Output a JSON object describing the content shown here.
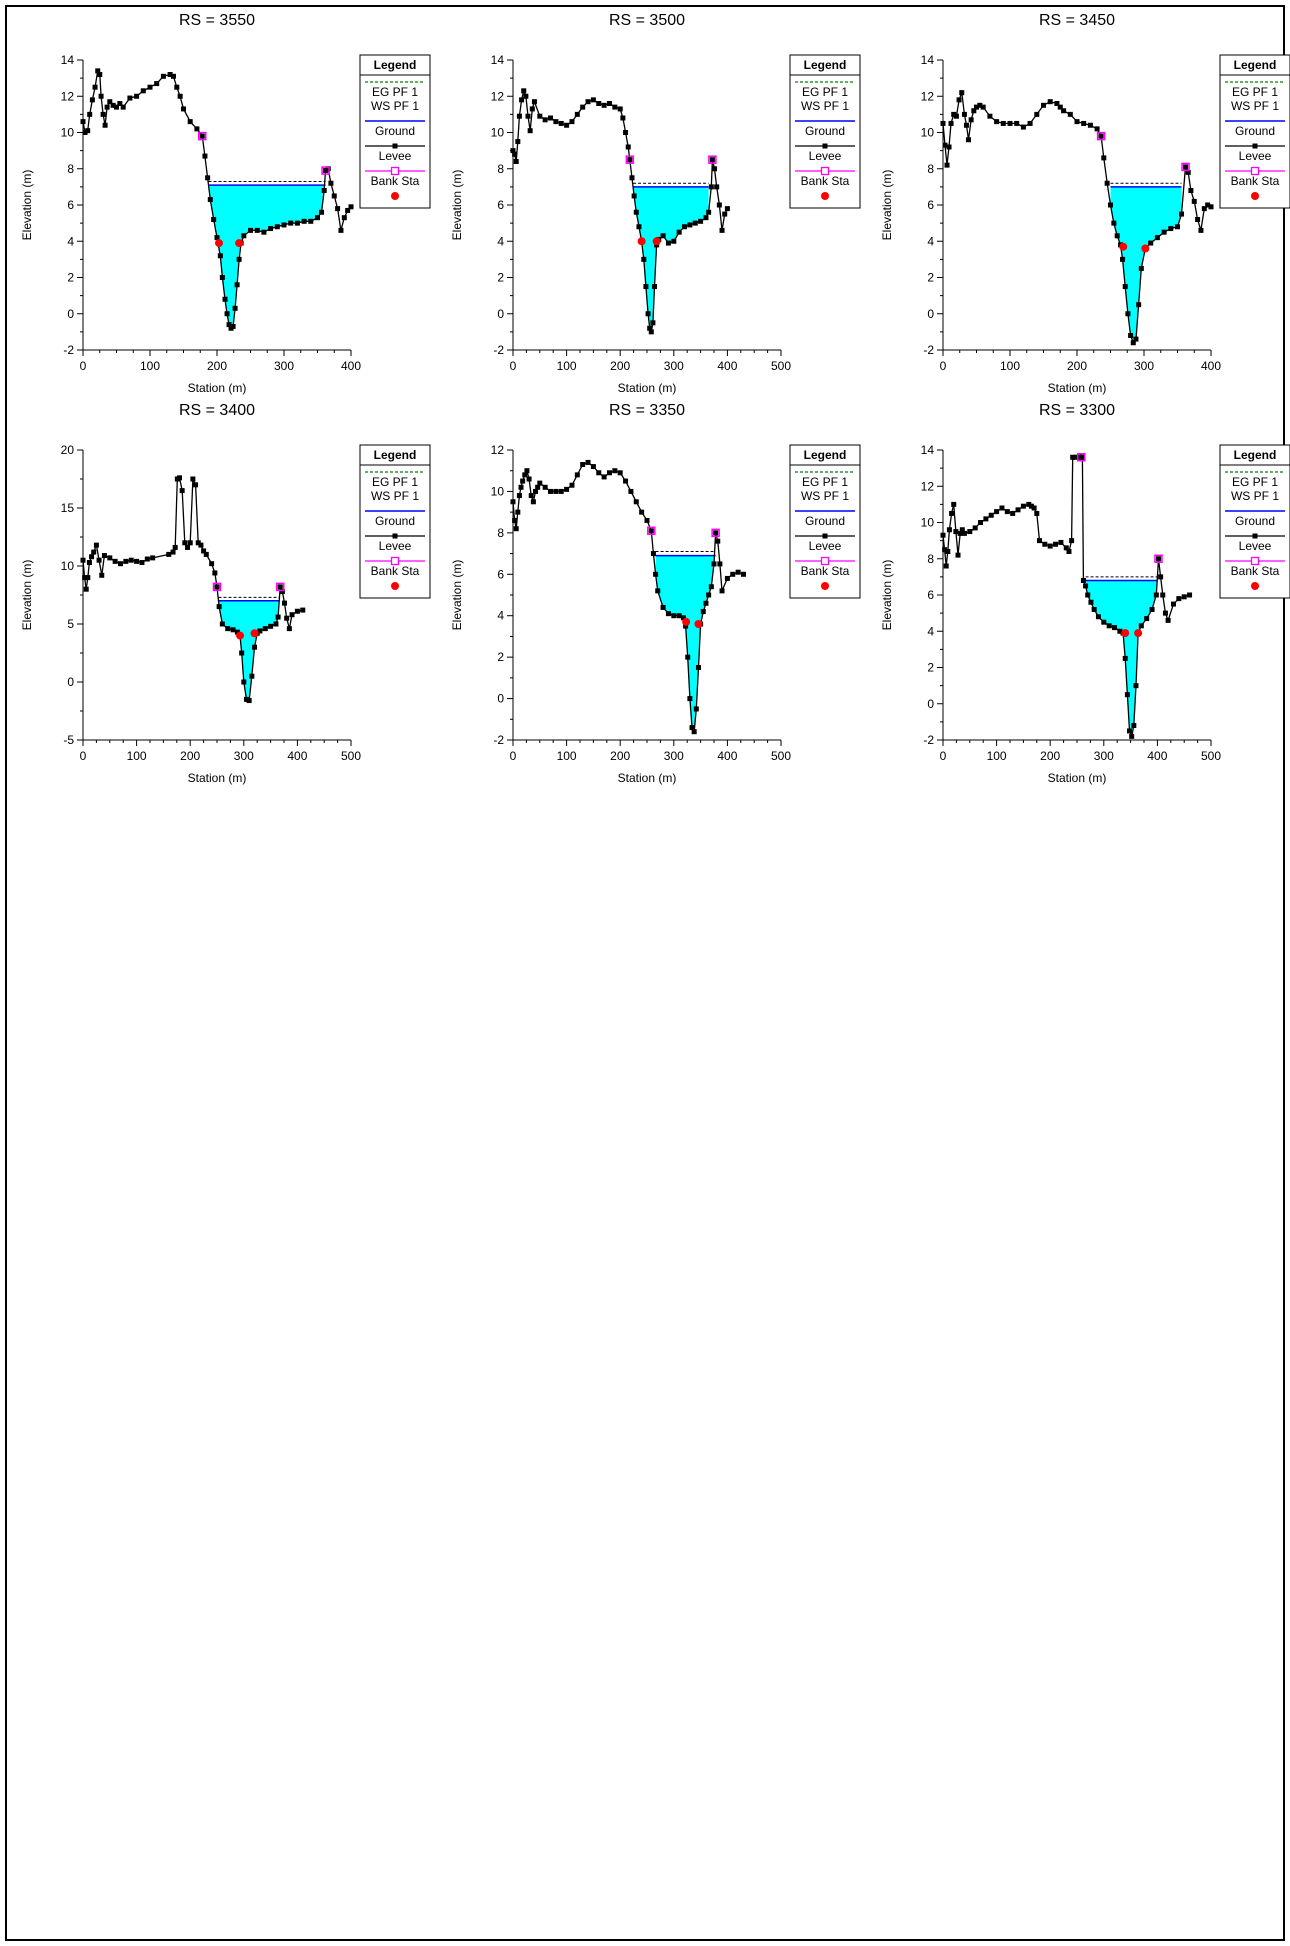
{
  "colors": {
    "water_fill": "#00ffff",
    "ws_line": "#0000ff",
    "eg_line": "#008000",
    "ground": "#000000",
    "levee": "#ff00ff",
    "bank_sta": "#ff0000",
    "panel_bg": "#ffffff"
  },
  "legend": {
    "title": "Legend",
    "items": [
      {
        "label": "EG PF 1",
        "style": "dashed-line",
        "color": "#008000"
      },
      {
        "label": "WS PF 1",
        "style": "line",
        "color": "#0000ff"
      },
      {
        "label": "Ground",
        "style": "line-square-marker",
        "color": "#000000"
      },
      {
        "label": "Levee",
        "style": "line-open-square-marker",
        "color": "#ff00ff"
      },
      {
        "label": "Bank Sta",
        "style": "dot-marker",
        "color": "#ff0000"
      }
    ]
  },
  "chart_data": [
    {
      "type": "line",
      "title": "RS = 3550",
      "xlabel": "Station (m)",
      "ylabel": "Elevation (m)",
      "xlim": [
        0,
        400
      ],
      "ylim": [
        -2,
        14
      ],
      "xticks": [
        0,
        100,
        200,
        300,
        400
      ],
      "yticks": [
        -2,
        0,
        2,
        4,
        6,
        8,
        10,
        12,
        14
      ],
      "grid": false,
      "legend_position": "top-right",
      "ws_elevation": 7.1,
      "eg_elevation": 7.3,
      "levees": [
        {
          "x": 178,
          "y": 9.8
        },
        {
          "x": 362,
          "y": 7.9
        }
      ],
      "bank_stations": [
        {
          "x": 203,
          "y": 3.9
        },
        {
          "x": 233,
          "y": 3.9
        }
      ],
      "ground": {
        "x": [
          0,
          3,
          7,
          10,
          14,
          18,
          22,
          25,
          27,
          30,
          33,
          36,
          40,
          45,
          50,
          55,
          60,
          70,
          80,
          90,
          100,
          110,
          120,
          130,
          135,
          140,
          145,
          150,
          160,
          170,
          178,
          182,
          186,
          190,
          195,
          200,
          205,
          208,
          212,
          215,
          218,
          221,
          224,
          227,
          230,
          233,
          236,
          240,
          250,
          260,
          270,
          280,
          290,
          300,
          310,
          320,
          330,
          340,
          350,
          356,
          360,
          362,
          366,
          370,
          375,
          380,
          385,
          390,
          395,
          400
        ],
        "y": [
          10.6,
          10.0,
          10.1,
          11.0,
          11.8,
          12.5,
          13.4,
          13.2,
          12.0,
          11.0,
          10.4,
          11.4,
          11.7,
          11.5,
          11.4,
          11.6,
          11.4,
          11.9,
          12.0,
          12.3,
          12.5,
          12.7,
          13.1,
          13.2,
          13.1,
          12.5,
          12.0,
          11.3,
          10.6,
          10.2,
          9.8,
          8.7,
          7.5,
          6.3,
          5.2,
          4.2,
          3.2,
          2.0,
          0.8,
          0.0,
          -0.6,
          -0.8,
          -0.7,
          0.3,
          1.6,
          3.0,
          3.9,
          4.3,
          4.6,
          4.6,
          4.5,
          4.7,
          4.8,
          4.9,
          5.0,
          5.0,
          5.1,
          5.1,
          5.3,
          5.6,
          6.8,
          7.9,
          8.0,
          7.2,
          6.5,
          5.8,
          4.6,
          5.3,
          5.7,
          5.9
        ]
      }
    },
    {
      "type": "line",
      "title": "RS = 3500",
      "xlabel": "Station (m)",
      "ylabel": "Elevation (m)",
      "xlim": [
        0,
        500
      ],
      "ylim": [
        -2,
        14
      ],
      "xticks": [
        0,
        100,
        200,
        300,
        400,
        500
      ],
      "yticks": [
        -2,
        0,
        2,
        4,
        6,
        8,
        10,
        12,
        14
      ],
      "grid": false,
      "legend_position": "top-right",
      "ws_elevation": 7.0,
      "eg_elevation": 7.2,
      "levees": [
        {
          "x": 218,
          "y": 8.5
        },
        {
          "x": 372,
          "y": 8.5
        }
      ],
      "bank_stations": [
        {
          "x": 240,
          "y": 4.0
        },
        {
          "x": 268,
          "y": 4.0
        }
      ],
      "ground": {
        "x": [
          0,
          3,
          6,
          9,
          12,
          16,
          20,
          24,
          28,
          32,
          36,
          40,
          50,
          60,
          70,
          80,
          90,
          100,
          110,
          120,
          130,
          140,
          150,
          160,
          170,
          180,
          190,
          200,
          205,
          210,
          215,
          218,
          222,
          226,
          230,
          235,
          240,
          244,
          248,
          252,
          255,
          258,
          261,
          264,
          268,
          272,
          280,
          290,
          300,
          310,
          320,
          330,
          340,
          350,
          360,
          365,
          370,
          372,
          376,
          380,
          385,
          390,
          395,
          400
        ],
        "y": [
          9.0,
          8.8,
          8.4,
          9.5,
          10.9,
          11.8,
          12.3,
          12.0,
          10.9,
          10.1,
          11.3,
          11.7,
          10.9,
          10.7,
          10.8,
          10.6,
          10.5,
          10.4,
          10.6,
          11.0,
          11.4,
          11.7,
          11.8,
          11.6,
          11.5,
          11.6,
          11.4,
          11.3,
          10.8,
          10.0,
          9.2,
          8.5,
          7.5,
          6.5,
          5.6,
          4.8,
          4.0,
          3.0,
          1.5,
          0.0,
          -0.8,
          -1.0,
          -0.5,
          1.5,
          3.8,
          4.1,
          4.3,
          3.9,
          4.0,
          4.5,
          4.8,
          4.9,
          5.0,
          5.1,
          5.3,
          5.6,
          7.0,
          8.5,
          8.0,
          7.0,
          6.0,
          4.6,
          5.5,
          5.8
        ]
      }
    },
    {
      "type": "line",
      "title": "RS = 3450",
      "xlabel": "Station (m)",
      "ylabel": "Elevation (m)",
      "xlim": [
        0,
        400
      ],
      "ylim": [
        -2,
        14
      ],
      "xticks": [
        0,
        100,
        200,
        300,
        400
      ],
      "yticks": [
        -2,
        0,
        2,
        4,
        6,
        8,
        10,
        12,
        14
      ],
      "grid": false,
      "legend_position": "top-right",
      "ws_elevation": 7.0,
      "eg_elevation": 7.2,
      "levees": [
        {
          "x": 236,
          "y": 9.8
        },
        {
          "x": 362,
          "y": 8.1
        }
      ],
      "bank_stations": [
        {
          "x": 269,
          "y": 3.7
        },
        {
          "x": 302,
          "y": 3.6
        }
      ],
      "ground": {
        "x": [
          0,
          3,
          6,
          9,
          12,
          16,
          20,
          24,
          28,
          32,
          35,
          38,
          42,
          46,
          50,
          55,
          60,
          70,
          80,
          90,
          100,
          110,
          120,
          130,
          140,
          150,
          160,
          170,
          175,
          180,
          190,
          200,
          210,
          220,
          230,
          236,
          240,
          245,
          250,
          255,
          260,
          265,
          268,
          272,
          276,
          280,
          284,
          288,
          292,
          296,
          302,
          310,
          320,
          330,
          340,
          350,
          356,
          362,
          366,
          370,
          375,
          380,
          385,
          390,
          395,
          400
        ],
        "y": [
          10.5,
          9.3,
          8.2,
          9.2,
          10.5,
          11.0,
          10.9,
          11.8,
          12.2,
          11.0,
          10.4,
          9.6,
          10.7,
          11.2,
          11.4,
          11.5,
          11.4,
          10.9,
          10.6,
          10.5,
          10.5,
          10.5,
          10.3,
          10.5,
          11.0,
          11.5,
          11.7,
          11.6,
          11.4,
          11.2,
          11.0,
          10.6,
          10.5,
          10.4,
          10.2,
          9.8,
          8.6,
          7.2,
          6.0,
          5.0,
          4.3,
          3.8,
          3.0,
          1.5,
          0.0,
          -1.2,
          -1.6,
          -1.4,
          0.5,
          2.5,
          3.6,
          3.9,
          4.2,
          4.5,
          4.7,
          4.8,
          5.5,
          8.1,
          7.8,
          6.8,
          6.2,
          5.2,
          4.6,
          5.8,
          6.0,
          5.9
        ]
      }
    },
    {
      "type": "line",
      "title": "RS = 3400",
      "xlabel": "Station (m)",
      "ylabel": "Elevation (m)",
      "xlim": [
        0,
        500
      ],
      "ylim": [
        -5,
        20
      ],
      "xticks": [
        0,
        100,
        200,
        300,
        400,
        500
      ],
      "yticks": [
        -5,
        0,
        5,
        10,
        15,
        20
      ],
      "grid": false,
      "legend_position": "top-right",
      "ws_elevation": 7.0,
      "eg_elevation": 7.3,
      "levees": [
        {
          "x": 250,
          "y": 8.2
        },
        {
          "x": 368,
          "y": 8.2
        }
      ],
      "bank_stations": [
        {
          "x": 293,
          "y": 4.0
        },
        {
          "x": 320,
          "y": 4.2
        }
      ],
      "ground": {
        "x": [
          0,
          3,
          6,
          9,
          12,
          16,
          20,
          25,
          30,
          35,
          40,
          50,
          60,
          70,
          80,
          90,
          100,
          110,
          120,
          130,
          160,
          168,
          172,
          176,
          180,
          185,
          190,
          195,
          200,
          205,
          210,
          215,
          220,
          225,
          230,
          240,
          246,
          250,
          254,
          260,
          270,
          280,
          288,
          293,
          296,
          300,
          305,
          310,
          315,
          320,
          325,
          330,
          340,
          350,
          360,
          364,
          368,
          372,
          376,
          380,
          385,
          390,
          400,
          410
        ],
        "y": [
          10.5,
          9.0,
          8.0,
          9.0,
          10.3,
          10.8,
          11.2,
          11.8,
          10.5,
          9.2,
          10.9,
          10.7,
          10.4,
          10.2,
          10.4,
          10.5,
          10.4,
          10.3,
          10.6,
          10.7,
          11.0,
          11.2,
          11.6,
          17.5,
          17.6,
          16.5,
          12.0,
          11.6,
          12.0,
          17.5,
          17.0,
          12.0,
          11.8,
          11.3,
          11.0,
          10.2,
          9.4,
          8.2,
          6.5,
          5.0,
          4.6,
          4.5,
          4.3,
          4.0,
          2.5,
          0.0,
          -1.5,
          -1.6,
          0.5,
          3.0,
          4.2,
          4.4,
          4.6,
          4.8,
          5.0,
          5.6,
          8.2,
          7.8,
          6.8,
          5.5,
          4.6,
          5.8,
          6.1,
          6.2
        ]
      }
    },
    {
      "type": "line",
      "title": "RS = 3350",
      "xlabel": "Station (m)",
      "ylabel": "Elevation (m)",
      "xlim": [
        0,
        500
      ],
      "ylim": [
        -2,
        12
      ],
      "xticks": [
        0,
        100,
        200,
        300,
        400,
        500
      ],
      "yticks": [
        -2,
        0,
        2,
        4,
        6,
        8,
        10,
        12
      ],
      "grid": false,
      "legend_position": "top-right",
      "ws_elevation": 6.9,
      "eg_elevation": 7.1,
      "levees": [
        {
          "x": 258,
          "y": 8.1
        },
        {
          "x": 378,
          "y": 8.0
        }
      ],
      "bank_stations": [
        {
          "x": 323,
          "y": 3.7
        },
        {
          "x": 346,
          "y": 3.6
        }
      ],
      "ground": {
        "x": [
          0,
          3,
          6,
          9,
          12,
          15,
          18,
          22,
          26,
          30,
          34,
          38,
          42,
          46,
          50,
          60,
          70,
          80,
          90,
          100,
          110,
          120,
          130,
          140,
          150,
          160,
          170,
          180,
          190,
          200,
          210,
          220,
          230,
          240,
          250,
          258,
          262,
          266,
          270,
          280,
          290,
          300,
          310,
          318,
          322,
          326,
          330,
          334,
          338,
          342,
          346,
          350,
          355,
          360,
          365,
          370,
          375,
          378,
          382,
          386,
          390,
          400,
          410,
          420,
          430
        ],
        "y": [
          9.5,
          8.6,
          8.2,
          9.0,
          9.8,
          10.2,
          10.5,
          10.8,
          11.0,
          10.6,
          9.8,
          9.5,
          10.0,
          10.2,
          10.4,
          10.2,
          10.0,
          10.0,
          10.0,
          10.1,
          10.3,
          10.8,
          11.3,
          11.4,
          11.2,
          10.9,
          10.7,
          10.9,
          11.0,
          10.9,
          10.5,
          10.0,
          9.5,
          9.0,
          8.6,
          8.1,
          7.0,
          6.0,
          5.2,
          4.4,
          4.1,
          4.0,
          4.0,
          3.9,
          3.5,
          2.0,
          0.0,
          -1.4,
          -1.6,
          -0.5,
          1.5,
          3.6,
          4.2,
          4.6,
          5.0,
          5.4,
          6.5,
          8.0,
          7.6,
          6.5,
          5.2,
          5.8,
          6.0,
          6.1,
          6.0
        ]
      }
    },
    {
      "type": "line",
      "title": "RS = 3300",
      "xlabel": "Station (m)",
      "ylabel": "Elevation (m)",
      "xlim": [
        0,
        500
      ],
      "ylim": [
        -2,
        14
      ],
      "xticks": [
        0,
        100,
        200,
        300,
        400,
        500
      ],
      "yticks": [
        -2,
        0,
        2,
        4,
        6,
        8,
        10,
        12,
        14
      ],
      "grid": false,
      "legend_position": "top-right",
      "ws_elevation": 6.8,
      "eg_elevation": 7.0,
      "levees": [
        {
          "x": 258,
          "y": 13.6
        },
        {
          "x": 402,
          "y": 8.0
        }
      ],
      "bank_stations": [
        {
          "x": 340,
          "y": 3.9
        },
        {
          "x": 364,
          "y": 3.9
        }
      ],
      "ground": {
        "x": [
          0,
          3,
          6,
          9,
          12,
          16,
          20,
          24,
          28,
          32,
          36,
          40,
          50,
          60,
          70,
          80,
          90,
          100,
          110,
          120,
          130,
          140,
          150,
          160,
          165,
          170,
          175,
          180,
          190,
          200,
          210,
          220,
          230,
          235,
          240,
          242,
          248,
          254,
          258,
          260,
          262,
          266,
          270,
          276,
          282,
          290,
          300,
          310,
          320,
          330,
          336,
          340,
          344,
          348,
          352,
          356,
          360,
          364,
          370,
          380,
          390,
          398,
          402,
          406,
          410,
          415,
          420,
          430,
          440,
          450,
          460
        ],
        "y": [
          9.3,
          8.5,
          7.6,
          8.4,
          9.6,
          10.5,
          11.0,
          9.5,
          8.2,
          9.4,
          9.6,
          9.4,
          9.5,
          9.7,
          10.0,
          10.2,
          10.4,
          10.6,
          10.8,
          10.6,
          10.5,
          10.7,
          10.9,
          11.0,
          10.9,
          10.8,
          10.5,
          9.0,
          8.8,
          8.7,
          8.8,
          8.9,
          8.6,
          8.4,
          9.0,
          13.6,
          13.6,
          13.6,
          13.6,
          13.6,
          6.8,
          6.5,
          6.0,
          5.6,
          5.2,
          4.8,
          4.5,
          4.3,
          4.2,
          4.0,
          3.9,
          2.5,
          0.5,
          -1.5,
          -1.8,
          -1.2,
          1.0,
          3.9,
          4.3,
          4.7,
          5.2,
          6.0,
          8.0,
          7.0,
          6.0,
          5.0,
          4.6,
          5.5,
          5.8,
          5.9,
          6.0
        ]
      }
    }
  ]
}
